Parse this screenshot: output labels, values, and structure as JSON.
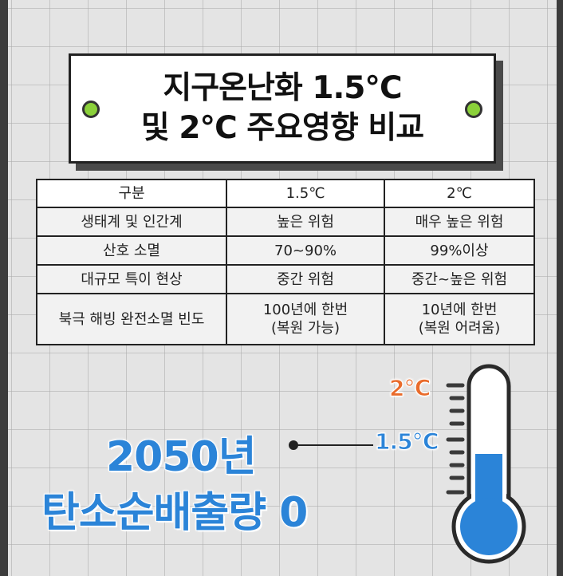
{
  "title": {
    "line1": "지구온난화 1.5℃",
    "line2": "및 2℃ 주요영향 비교"
  },
  "table": {
    "headers": [
      "구분",
      "1.5℃",
      "2℃"
    ],
    "rows": [
      [
        "생태계 및 인간계",
        "높은 위험",
        "매우 높은 위험"
      ],
      [
        "산호 소멸",
        "70~90%",
        "99%이상"
      ],
      [
        "대규모 특이 현상",
        "중간 위험",
        "중간~높은 위험"
      ],
      [
        "북극 해빙 완전소멸 빈도",
        "100년에 한번\n(복원 가능)",
        "10년에 한번\n(복원 어려움)"
      ]
    ]
  },
  "headline": {
    "line1": "2050년",
    "line2": "탄소순배출량 0"
  },
  "thermometer": {
    "label_high": "2℃",
    "label_low": "1.5℃",
    "fill_level_fraction": 0.5
  },
  "colors": {
    "accent_blue": "#2b84d8",
    "accent_orange": "#e96b2b",
    "dot_green": "#8bd13a"
  }
}
